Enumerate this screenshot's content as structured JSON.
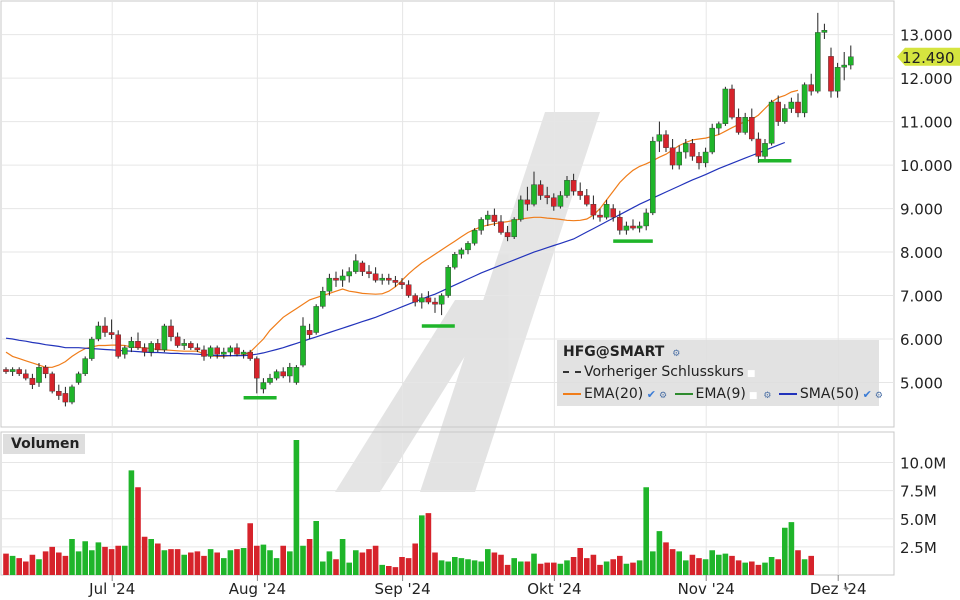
{
  "ticker": "HFG@SMART",
  "last_price_label": "12.490",
  "legend": {
    "ticker": "HFG@SMART",
    "prev_close": "Vorheriger Schlusskurs",
    "ema20": "EMA(20)",
    "ema9": "EMA(9)",
    "sma50": "SMA(50)"
  },
  "volume_title": "Volumen",
  "colors": {
    "up": "#1fb52a",
    "down": "#d6232b",
    "ema20": "#f07d1a",
    "ema9": "#2e8b2e",
    "sma50": "#2233bb",
    "marker": "#1fb52a",
    "price_tag": "#d5e43f"
  },
  "chart_data": {
    "type": "candlestick",
    "price_axis": {
      "ticks": [
        "13.000",
        "12.000",
        "11.000",
        "10.000",
        "9.000",
        "8.000",
        "7.000",
        "6.000",
        "5.000"
      ],
      "ylim": [
        4.0,
        13.75
      ]
    },
    "volume_axis": {
      "ticks": [
        "10.0M",
        "7.5M",
        "5.0M",
        "2.5M"
      ],
      "ylim": [
        0,
        12.0
      ]
    },
    "x_labels": [
      {
        "label": "Jul '24",
        "index": 7
      },
      {
        "label": "Aug '24",
        "index": 29
      },
      {
        "label": "Sep '24",
        "index": 51
      },
      {
        "label": "Okt '24",
        "index": 74
      },
      {
        "label": "Nov '24",
        "index": 97
      },
      {
        "label": "Dez '24",
        "index": 117
      }
    ],
    "last_price": 12.49,
    "series": [
      {
        "name": "EMA(20)",
        "values": [
          5.7,
          5.6,
          5.55,
          5.5,
          5.45,
          5.4,
          5.35,
          5.35,
          5.4,
          5.48,
          5.6,
          5.7,
          5.78,
          5.82,
          5.85,
          5.85,
          5.86,
          5.86,
          5.85,
          5.82,
          5.8,
          5.8,
          5.78,
          5.76,
          5.75,
          5.74,
          5.73,
          5.72,
          5.72,
          5.72,
          5.65,
          5.62,
          5.6,
          5.6,
          5.62,
          5.62,
          5.63,
          5.7,
          5.85,
          6.0,
          6.2,
          6.35,
          6.5,
          6.6,
          6.7,
          6.8,
          6.9,
          6.95,
          7.0,
          7.05,
          7.1,
          7.15,
          7.1,
          7.08,
          7.05,
          7.04,
          7.03,
          7.04,
          7.1,
          7.2,
          7.35,
          7.5,
          7.63,
          7.75,
          7.85,
          7.95,
          8.05,
          8.15,
          8.25,
          8.35,
          8.45,
          8.52,
          8.58,
          8.62,
          8.65,
          8.68,
          8.7,
          8.73,
          8.76,
          8.78,
          8.8,
          8.8,
          8.78,
          8.77,
          8.75,
          8.73,
          8.72,
          8.73,
          8.76,
          8.85,
          9.0,
          9.2,
          9.4,
          9.6,
          9.75,
          9.88,
          9.97,
          10.03,
          10.1,
          10.18,
          10.25,
          10.35,
          10.45,
          10.52,
          10.58,
          10.6,
          10.62,
          10.66,
          10.7,
          10.78,
          10.86,
          10.93,
          11.0,
          11.05,
          11.15,
          11.3,
          11.45,
          11.55,
          11.6,
          11.68,
          11.72
        ]
      },
      {
        "name": "SMA(50)",
        "values": [
          6.02,
          6.0,
          5.97,
          5.95,
          5.92,
          5.9,
          5.87,
          5.85,
          5.83,
          5.8,
          5.8,
          5.8,
          5.79,
          5.78,
          5.77,
          5.76,
          5.75,
          5.74,
          5.73,
          5.72,
          5.71,
          5.7,
          5.69,
          5.69,
          5.68,
          5.67,
          5.67,
          5.66,
          5.66,
          5.65,
          5.64,
          5.63,
          5.62,
          5.62,
          5.62,
          5.62,
          5.62,
          5.63,
          5.65,
          5.68,
          5.72,
          5.76,
          5.8,
          5.85,
          5.9,
          5.95,
          6.0,
          6.05,
          6.1,
          6.15,
          6.2,
          6.25,
          6.3,
          6.35,
          6.4,
          6.45,
          6.5,
          6.56,
          6.62,
          6.68,
          6.74,
          6.8,
          6.86,
          6.92,
          6.98,
          7.03,
          7.1,
          7.17,
          7.24,
          7.31,
          7.38,
          7.45,
          7.52,
          7.58,
          7.64,
          7.7,
          7.76,
          7.82,
          7.88,
          7.94,
          8.0,
          8.05,
          8.1,
          8.15,
          8.2,
          8.25,
          8.3,
          8.38,
          8.46,
          8.54,
          8.62,
          8.7,
          8.78,
          8.86,
          8.94,
          9.02,
          9.1,
          9.17,
          9.24,
          9.31,
          9.38,
          9.45,
          9.52,
          9.59,
          9.66,
          9.72,
          9.78,
          9.85,
          9.92,
          9.98,
          10.04,
          10.1,
          10.16,
          10.22,
          10.28,
          10.34,
          10.4,
          10.46,
          10.52
        ]
      }
    ],
    "candles": [
      [
        5.3,
        5.35,
        5.2,
        5.25
      ],
      [
        5.25,
        5.35,
        5.15,
        5.3
      ],
      [
        5.3,
        5.35,
        5.15,
        5.2
      ],
      [
        5.2,
        5.3,
        5.05,
        5.1
      ],
      [
        5.1,
        5.2,
        4.85,
        4.95
      ],
      [
        5.0,
        5.45,
        4.9,
        5.35
      ],
      [
        5.35,
        5.4,
        5.1,
        5.2
      ],
      [
        5.2,
        5.25,
        4.75,
        4.8
      ],
      [
        4.8,
        4.95,
        4.6,
        4.7
      ],
      [
        4.75,
        4.9,
        4.45,
        4.55
      ],
      [
        4.55,
        4.95,
        4.5,
        4.9
      ],
      [
        5.0,
        5.25,
        4.95,
        5.2
      ],
      [
        5.2,
        5.6,
        5.15,
        5.55
      ],
      [
        5.55,
        6.05,
        5.5,
        6.0
      ],
      [
        6.0,
        6.4,
        5.95,
        6.3
      ],
      [
        6.3,
        6.5,
        6.05,
        6.15
      ],
      [
        6.15,
        6.45,
        6.0,
        6.1
      ],
      [
        6.1,
        6.2,
        5.55,
        5.6
      ],
      [
        5.65,
        5.85,
        5.55,
        5.8
      ],
      [
        5.8,
        6.05,
        5.7,
        5.95
      ],
      [
        5.95,
        6.15,
        5.75,
        5.8
      ],
      [
        5.8,
        5.9,
        5.6,
        5.7
      ],
      [
        5.7,
        5.95,
        5.6,
        5.9
      ],
      [
        5.9,
        6.0,
        5.7,
        5.75
      ],
      [
        5.75,
        6.35,
        5.7,
        6.3
      ],
      [
        6.3,
        6.45,
        5.95,
        6.05
      ],
      [
        6.05,
        6.15,
        5.8,
        5.85
      ],
      [
        5.85,
        6.0,
        5.75,
        5.9
      ],
      [
        5.9,
        5.95,
        5.75,
        5.8
      ],
      [
        5.8,
        5.9,
        5.7,
        5.75
      ],
      [
        5.75,
        5.85,
        5.5,
        5.6
      ],
      [
        5.6,
        5.85,
        5.55,
        5.8
      ],
      [
        5.8,
        5.85,
        5.55,
        5.65
      ],
      [
        5.65,
        5.8,
        5.55,
        5.7
      ],
      [
        5.7,
        5.85,
        5.6,
        5.8
      ],
      [
        5.8,
        5.9,
        5.6,
        5.65
      ],
      [
        5.65,
        5.75,
        5.55,
        5.7
      ],
      [
        5.7,
        5.75,
        5.5,
        5.55
      ],
      [
        5.55,
        5.6,
        4.75,
        5.1
      ],
      [
        4.85,
        5.1,
        4.75,
        5.0
      ],
      [
        5.0,
        5.2,
        4.95,
        5.1
      ],
      [
        5.1,
        5.3,
        5.05,
        5.25
      ],
      [
        5.25,
        5.35,
        5.1,
        5.15
      ],
      [
        5.15,
        5.45,
        5.0,
        5.35
      ],
      [
        5.0,
        5.4,
        4.95,
        5.35
      ],
      [
        5.4,
        6.5,
        5.35,
        6.3
      ],
      [
        6.2,
        6.35,
        6.0,
        6.1
      ],
      [
        6.15,
        6.8,
        6.1,
        6.75
      ],
      [
        6.75,
        7.2,
        6.7,
        7.1
      ],
      [
        7.1,
        7.5,
        7.0,
        7.4
      ],
      [
        7.4,
        7.55,
        7.2,
        7.35
      ],
      [
        7.35,
        7.6,
        7.2,
        7.45
      ],
      [
        7.45,
        7.65,
        7.3,
        7.55
      ],
      [
        7.55,
        7.95,
        7.5,
        7.8
      ],
      [
        7.75,
        7.8,
        7.45,
        7.55
      ],
      [
        7.55,
        7.7,
        7.4,
        7.5
      ],
      [
        7.5,
        7.65,
        7.3,
        7.35
      ],
      [
        7.35,
        7.5,
        7.25,
        7.4
      ],
      [
        7.4,
        7.5,
        7.25,
        7.35
      ],
      [
        7.35,
        7.45,
        7.2,
        7.3
      ],
      [
        7.3,
        7.4,
        7.15,
        7.25
      ],
      [
        7.25,
        7.35,
        6.95,
        7.0
      ],
      [
        7.0,
        7.05,
        6.75,
        6.85
      ],
      [
        6.85,
        7.05,
        6.7,
        6.95
      ],
      [
        6.95,
        7.1,
        6.8,
        6.85
      ],
      [
        6.85,
        6.95,
        6.6,
        6.8
      ],
      [
        6.8,
        7.05,
        6.55,
        7.0
      ],
      [
        7.0,
        7.7,
        6.95,
        7.65
      ],
      [
        7.65,
        8.0,
        7.6,
        7.95
      ],
      [
        7.95,
        8.1,
        7.85,
        8.05
      ],
      [
        8.05,
        8.25,
        7.95,
        8.2
      ],
      [
        8.2,
        8.55,
        8.15,
        8.5
      ],
      [
        8.5,
        8.8,
        8.4,
        8.75
      ],
      [
        8.75,
        8.95,
        8.6,
        8.85
      ],
      [
        8.85,
        9.0,
        8.6,
        8.7
      ],
      [
        8.7,
        8.85,
        8.4,
        8.45
      ],
      [
        8.45,
        8.6,
        8.25,
        8.35
      ],
      [
        8.35,
        8.8,
        8.3,
        8.75
      ],
      [
        8.75,
        9.3,
        8.7,
        9.2
      ],
      [
        9.2,
        9.5,
        8.95,
        9.1
      ],
      [
        9.1,
        9.85,
        9.05,
        9.55
      ],
      [
        9.55,
        9.65,
        9.2,
        9.3
      ],
      [
        9.3,
        9.5,
        9.1,
        9.25
      ],
      [
        9.25,
        9.35,
        8.95,
        9.05
      ],
      [
        9.05,
        9.4,
        9.0,
        9.3
      ],
      [
        9.3,
        9.75,
        9.25,
        9.65
      ],
      [
        9.65,
        9.8,
        9.3,
        9.4
      ],
      [
        9.4,
        9.6,
        9.2,
        9.3
      ],
      [
        9.3,
        9.45,
        9.05,
        9.1
      ],
      [
        9.1,
        9.3,
        8.75,
        8.85
      ],
      [
        8.85,
        9.0,
        8.7,
        8.8
      ],
      [
        8.8,
        9.2,
        8.75,
        9.1
      ],
      [
        9.0,
        9.1,
        8.7,
        8.8
      ],
      [
        8.8,
        8.95,
        8.4,
        8.5
      ],
      [
        8.5,
        8.7,
        8.4,
        8.6
      ],
      [
        8.6,
        8.75,
        8.5,
        8.55
      ],
      [
        8.55,
        8.7,
        8.45,
        8.6
      ],
      [
        8.6,
        9.0,
        8.5,
        8.9
      ],
      [
        8.9,
        10.65,
        8.85,
        10.55
      ],
      [
        10.55,
        11.0,
        10.3,
        10.7
      ],
      [
        10.7,
        10.8,
        10.3,
        10.4
      ],
      [
        10.4,
        10.6,
        9.9,
        10.0
      ],
      [
        10.0,
        10.45,
        9.9,
        10.3
      ],
      [
        10.3,
        10.6,
        10.15,
        10.5
      ],
      [
        10.5,
        10.6,
        10.1,
        10.2
      ],
      [
        10.2,
        10.3,
        9.9,
        10.05
      ],
      [
        10.05,
        10.4,
        9.95,
        10.3
      ],
      [
        10.3,
        10.95,
        10.25,
        10.85
      ],
      [
        10.85,
        11.0,
        10.7,
        10.95
      ],
      [
        10.95,
        11.8,
        10.9,
        11.75
      ],
      [
        11.75,
        11.85,
        11.05,
        11.1
      ],
      [
        11.1,
        11.3,
        10.7,
        10.75
      ],
      [
        10.75,
        11.2,
        10.7,
        11.1
      ],
      [
        11.1,
        11.3,
        10.55,
        10.6
      ],
      [
        10.6,
        10.75,
        10.05,
        10.2
      ],
      [
        10.2,
        10.6,
        10.1,
        10.5
      ],
      [
        10.5,
        11.5,
        10.45,
        11.45
      ],
      [
        11.45,
        11.6,
        10.9,
        11.0
      ],
      [
        11.0,
        11.4,
        10.95,
        11.3
      ],
      [
        11.3,
        11.55,
        11.2,
        11.45
      ],
      [
        11.45,
        11.65,
        11.1,
        11.2
      ],
      [
        11.2,
        11.9,
        11.1,
        11.85
      ],
      [
        11.85,
        12.1,
        11.6,
        11.7
      ],
      [
        11.7,
        13.5,
        11.65,
        13.05
      ],
      [
        13.05,
        13.25,
        12.9,
        13.1
      ],
      [
        12.5,
        12.7,
        11.55,
        11.7
      ],
      [
        11.7,
        12.35,
        11.55,
        12.25
      ],
      [
        12.25,
        12.6,
        11.95,
        12.3
      ],
      [
        12.3,
        12.75,
        12.2,
        12.49
      ]
    ],
    "volume": [
      1.9,
      1.7,
      1.5,
      1.2,
      1.8,
      1.4,
      2.1,
      2.5,
      2.0,
      1.7,
      3.2,
      2.1,
      3.0,
      2.2,
      2.9,
      2.5,
      2.3,
      2.6,
      2.6,
      5.3,
      8.7,
      3.4,
      3.2,
      2.8,
      2.2,
      2.3,
      2.3,
      1.8,
      2.0,
      2.1,
      1.7,
      2.3,
      2.0,
      1.5,
      2.2,
      2.3,
      2.4,
      4.6,
      2.6,
      2.7,
      2.2,
      1.5,
      2.6,
      2.1,
      2.8,
      2.6,
      3.2,
      3.0,
      1.2,
      2.1,
      1.4,
      3.2,
      1.1,
      2.2,
      2.0,
      2.3,
      2.6,
      0.9,
      0.8,
      0.7,
      1.6,
      1.5,
      2.8,
      1.8,
      5.5,
      2.0,
      1.3,
      1.2,
      1.6,
      1.5,
      1.4,
      1.3,
      1.2,
      2.3,
      2.0,
      1.8,
      0.9,
      1.5,
      1.2,
      1.2,
      1.9,
      1.0,
      1.1,
      1.1,
      1.0,
      1.3,
      1.6,
      2.4,
      1.5,
      1.8,
      0.9,
      1.2,
      1.4,
      1.7,
      1.0,
      1.1,
      1.3,
      3.9,
      2.1,
      3.9,
      2.9,
      2.3,
      2.1,
      1.3,
      1.8,
      1.5,
      1.4,
      2.2,
      1.8,
      1.9,
      1.7,
      1.3,
      1.1,
      1.2,
      0.9,
      1.1,
      1.6,
      1.4,
      1.0,
      0.9,
      1.2,
      1.8
    ],
    "volume_extra": [
      {
        "index": 19,
        "value": 9.3
      },
      {
        "index": 20,
        "value": 7.8
      },
      {
        "index": 44,
        "value": 12.0
      },
      {
        "index": 47,
        "value": 4.8
      },
      {
        "index": 63,
        "value": 5.3
      },
      {
        "index": 97,
        "value": 7.8
      },
      {
        "index": 118,
        "value": 4.2
      },
      {
        "index": 119,
        "value": 4.7
      },
      {
        "index": 120,
        "value": 2.2
      },
      {
        "index": 121,
        "value": 1.4
      },
      {
        "index": 122,
        "value": 1.7
      }
    ],
    "markers": [
      {
        "x_from": 36,
        "x_to": 41,
        "y": 4.65
      },
      {
        "x_from": 63,
        "x_to": 68,
        "y": 6.3
      },
      {
        "x_from": 92,
        "x_to": 98,
        "y": 8.25
      },
      {
        "x_from": 114,
        "x_to": 119,
        "y": 10.1
      }
    ]
  }
}
